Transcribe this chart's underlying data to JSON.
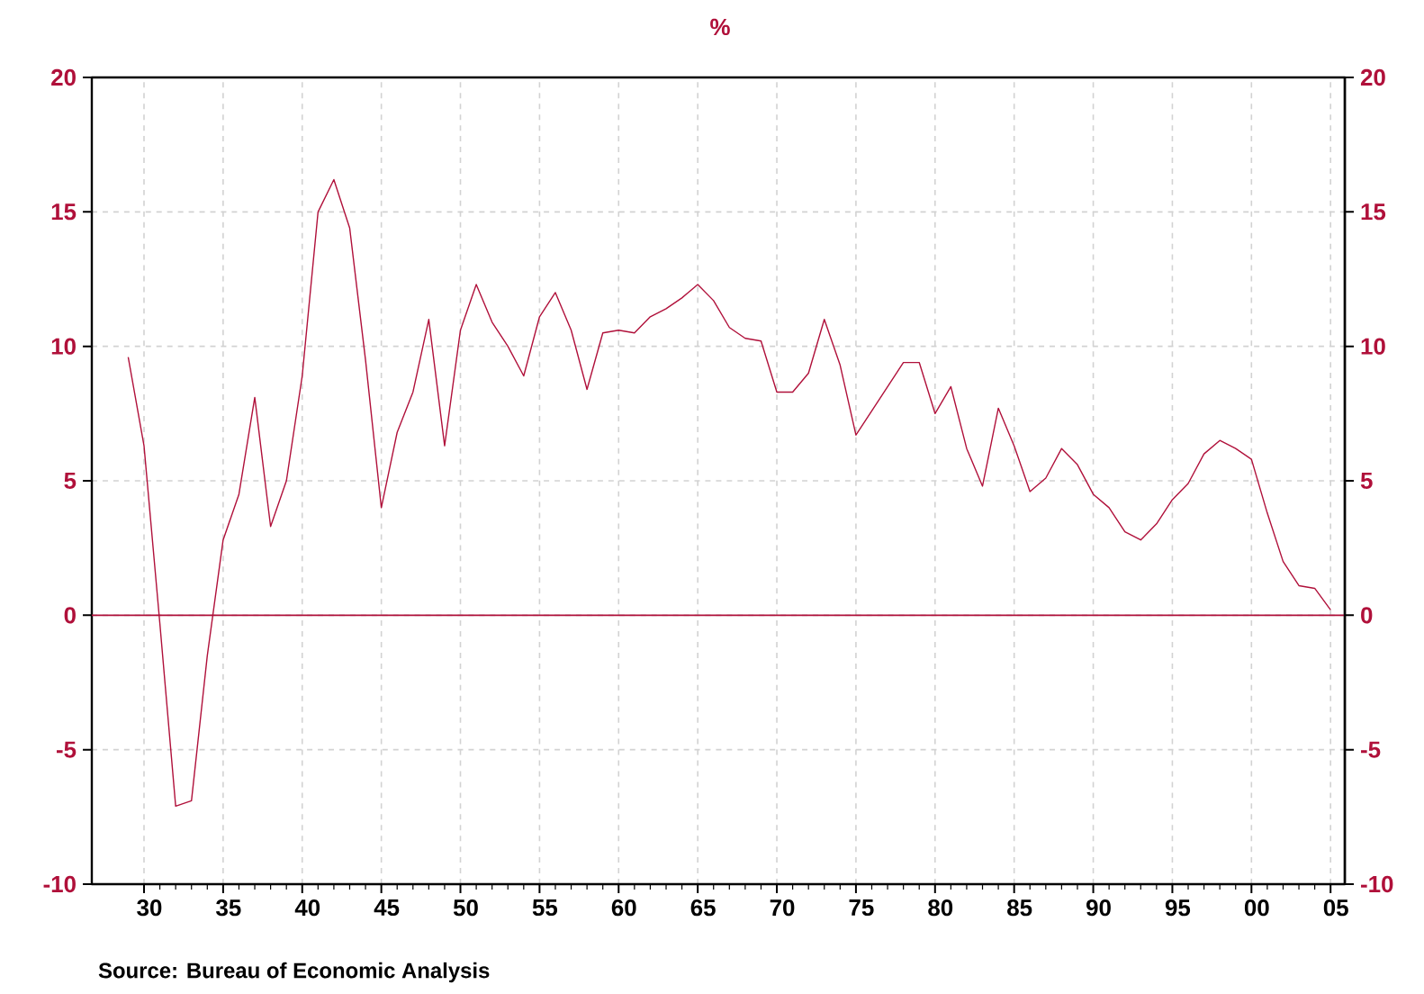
{
  "chart_data": {
    "type": "line",
    "title": "%",
    "annotations": [
      "Source:  Bureau of Economic Analysis"
    ],
    "x": [
      1929,
      1930,
      1931,
      1932,
      1933,
      1934,
      1935,
      1936,
      1937,
      1938,
      1939,
      1940,
      1941,
      1942,
      1943,
      1944,
      1945,
      1946,
      1947,
      1948,
      1949,
      1950,
      1951,
      1952,
      1953,
      1954,
      1955,
      1956,
      1957,
      1958,
      1959,
      1960,
      1961,
      1962,
      1963,
      1964,
      1965,
      1966,
      1967,
      1968,
      1969,
      1970,
      1971,
      1972,
      1973,
      1974,
      1975,
      1976,
      1977,
      1978,
      1979,
      1980,
      1981,
      1982,
      1983,
      1984,
      1985,
      1986,
      1987,
      1988,
      1989,
      1990,
      1991,
      1992,
      1993,
      1994,
      1995,
      1996,
      1997,
      1998,
      1999,
      2000,
      2001,
      2002,
      2003,
      2004,
      2005
    ],
    "series": [
      {
        "color": "#b0103a",
        "values": [
          9.6,
          6.3,
          -0.3,
          -7.1,
          -6.9,
          -1.5,
          2.8,
          4.5,
          8.1,
          3.3,
          5.0,
          8.9,
          15.0,
          16.2,
          14.4,
          9.5,
          4.0,
          6.8,
          8.3,
          11.0,
          6.3,
          10.6,
          12.3,
          10.9,
          10.0,
          8.9,
          11.1,
          12.0,
          10.6,
          8.4,
          10.5,
          10.6,
          10.5,
          11.1,
          11.4,
          11.8,
          12.3,
          11.7,
          10.7,
          10.3,
          10.2,
          8.3,
          8.3,
          9.0,
          11.0,
          9.3,
          6.7,
          7.6,
          8.5,
          9.4,
          9.4,
          7.5,
          8.5,
          6.2,
          4.8,
          7.7,
          6.3,
          4.6,
          5.1,
          6.2,
          5.6,
          4.5,
          4.0,
          3.1,
          2.8,
          3.4,
          4.3,
          4.9,
          6.0,
          6.5,
          6.2,
          5.8,
          3.8,
          2.0,
          1.1,
          1.0,
          0.2
        ]
      }
    ],
    "xlim": [
      1926.7,
      2005.9
    ],
    "xticks": [
      {
        "value": 1930,
        "label": "30"
      },
      {
        "value": 1935,
        "label": "35"
      },
      {
        "value": 1940,
        "label": "40"
      },
      {
        "value": 1945,
        "label": "45"
      },
      {
        "value": 1950,
        "label": "50"
      },
      {
        "value": 1955,
        "label": "55"
      },
      {
        "value": 1960,
        "label": "60"
      },
      {
        "value": 1965,
        "label": "65"
      },
      {
        "value": 1970,
        "label": "70"
      },
      {
        "value": 1975,
        "label": "75"
      },
      {
        "value": 1980,
        "label": "80"
      },
      {
        "value": 1985,
        "label": "85"
      },
      {
        "value": 1990,
        "label": "90"
      },
      {
        "value": 1995,
        "label": "95"
      },
      {
        "value": 2000,
        "label": "00"
      },
      {
        "value": 2005,
        "label": "05"
      }
    ],
    "ylim": [
      -10,
      20
    ],
    "yticks": [
      -10,
      -5,
      0,
      5,
      10,
      15,
      20
    ],
    "y2lim": [
      -10,
      20
    ],
    "y2ticks": [
      -10,
      -5,
      0,
      5,
      10,
      15,
      20
    ],
    "ref_lines": [
      {
        "axis": "y",
        "value": 0,
        "color": "#b0103a"
      }
    ],
    "grid": true,
    "line_style": "solid",
    "marker": "none"
  }
}
